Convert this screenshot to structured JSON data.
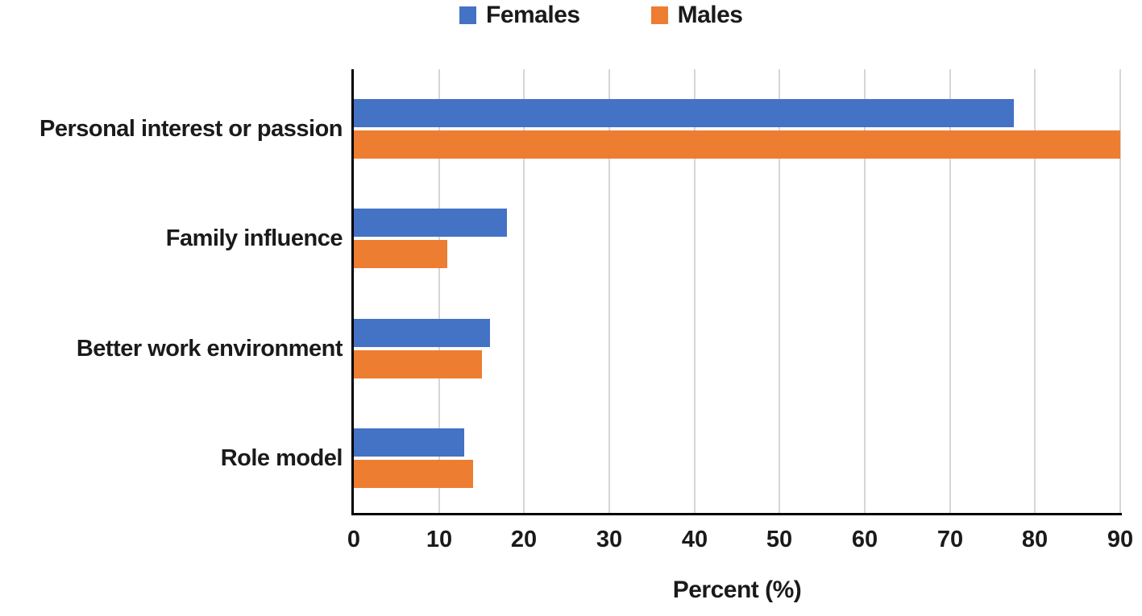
{
  "chart_data": {
    "type": "bar",
    "orientation": "horizontal",
    "title": "",
    "xlabel": "Percent (%)",
    "ylabel": "",
    "xlim": [
      0,
      90
    ],
    "xticks": [
      0,
      10,
      20,
      30,
      40,
      50,
      60,
      70,
      80,
      90
    ],
    "grid": true,
    "legend_position": "top-center",
    "categories": [
      "Personal interest or passion",
      "Family influence",
      "Better work environment",
      "Role model"
    ],
    "series": [
      {
        "name": "Females",
        "color": "#4472C4",
        "values": [
          77.5,
          18,
          16,
          13
        ]
      },
      {
        "name": "Males",
        "color": "#ED7D31",
        "values": [
          90,
          11,
          15,
          14
        ]
      }
    ]
  },
  "colors": {
    "females_bar": "#4472C4",
    "males_bar": "#ED7D31",
    "gridline": "#d6d6d6",
    "axis": "#000000",
    "text": "#1a1a1a",
    "background": "#ffffff"
  }
}
